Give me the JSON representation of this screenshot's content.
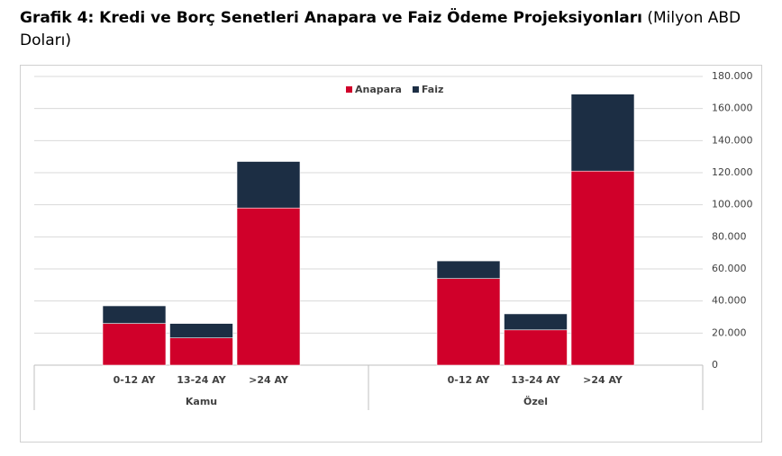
{
  "chart_data": {
    "type": "stacked_bar",
    "title": "Grafik 4: Kredi ve Borç Senetleri Anapara ve Faiz Ödeme Projeksiyonları",
    "title_note": "(Milyon ABD Doları)",
    "categories": [
      "0-12 AY",
      "13-24 AY",
      ">24 AY",
      "0-12 AY",
      "13-24 AY",
      ">24 AY"
    ],
    "groups": [
      "Kamu",
      "Özel"
    ],
    "series": [
      {
        "name": "Anapara",
        "color": "#d0002a",
        "values": [
          26000,
          17000,
          98000,
          54000,
          22000,
          121000
        ]
      },
      {
        "name": "Faiz",
        "color": "#1c2e44",
        "values": [
          11000,
          9000,
          29000,
          11000,
          10000,
          48000
        ]
      }
    ],
    "ylim": [
      0,
      180000
    ],
    "yticks": [
      0,
      {
        "value": 20000,
        "label": "20.000"
      },
      {
        "value": 40000,
        "label": "40.000"
      },
      {
        "value": 60000,
        "label": "60.000"
      },
      {
        "value": 80000,
        "label": "80.000"
      },
      {
        "value": 100000,
        "label": "100.000"
      },
      {
        "value": 120000,
        "label": "120.000"
      },
      {
        "value": 140000,
        "label": "140.000"
      },
      {
        "value": 160000,
        "label": "160.000"
      },
      {
        "value": 180000,
        "label": "180.000"
      }
    ],
    "y_axis_side": "right",
    "grid": true,
    "legend": "top"
  }
}
